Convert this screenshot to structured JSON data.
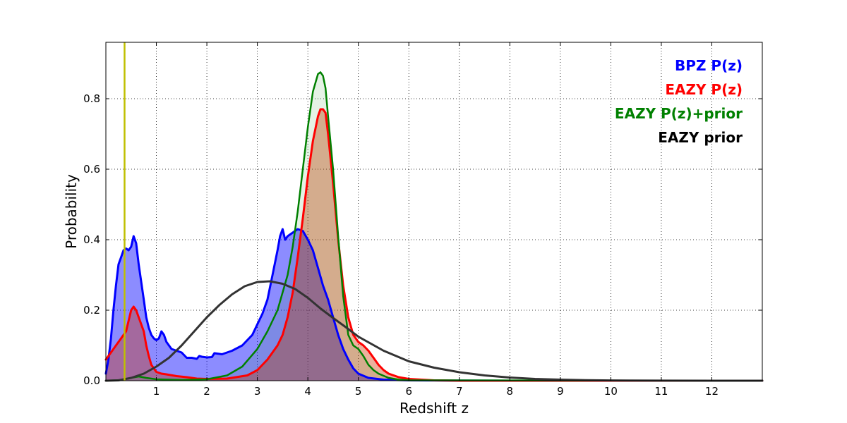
{
  "chart_data": {
    "type": "line",
    "title": "",
    "xlabel": "Redshift z",
    "ylabel": "Probability",
    "xlim": [
      0,
      13
    ],
    "ylim": [
      0,
      0.96
    ],
    "grid": true,
    "legend_position": "top-right",
    "x_ticks": [
      1,
      2,
      3,
      4,
      5,
      6,
      7,
      8,
      9,
      10,
      11,
      12
    ],
    "x_tick_labels": [
      "1",
      "2",
      "3",
      "4",
      "5",
      "6",
      "7",
      "8",
      "9",
      "10",
      "11",
      "12"
    ],
    "y_ticks": [
      0,
      0.2,
      0.4,
      0.6,
      0.8
    ],
    "y_tick_labels": [
      "0.0",
      "0.2",
      "0.4",
      "0.6",
      "0.8"
    ],
    "vertical_marker": {
      "x": 0.37,
      "color": "#bfbf00"
    },
    "series": [
      {
        "name": "BPZ P(z)",
        "color": "#0000ff",
        "fill": "#0000ff",
        "fill_opacity": 0.45,
        "stroke_width": 3,
        "points": [
          [
            0,
            0.02
          ],
          [
            0.05,
            0.06
          ],
          [
            0.1,
            0.12
          ],
          [
            0.15,
            0.2
          ],
          [
            0.2,
            0.27
          ],
          [
            0.25,
            0.33
          ],
          [
            0.3,
            0.35
          ],
          [
            0.35,
            0.37
          ],
          [
            0.4,
            0.375
          ],
          [
            0.45,
            0.37
          ],
          [
            0.5,
            0.38
          ],
          [
            0.55,
            0.41
          ],
          [
            0.6,
            0.39
          ],
          [
            0.65,
            0.33
          ],
          [
            0.7,
            0.28
          ],
          [
            0.75,
            0.23
          ],
          [
            0.8,
            0.18
          ],
          [
            0.85,
            0.15
          ],
          [
            0.9,
            0.13
          ],
          [
            0.95,
            0.12
          ],
          [
            1.0,
            0.115
          ],
          [
            1.05,
            0.12
          ],
          [
            1.1,
            0.14
          ],
          [
            1.15,
            0.13
          ],
          [
            1.2,
            0.11
          ],
          [
            1.3,
            0.09
          ],
          [
            1.4,
            0.085
          ],
          [
            1.5,
            0.08
          ],
          [
            1.6,
            0.065
          ],
          [
            1.7,
            0.065
          ],
          [
            1.8,
            0.062
          ],
          [
            1.85,
            0.07
          ],
          [
            1.9,
            0.068
          ],
          [
            2.0,
            0.066
          ],
          [
            2.1,
            0.067
          ],
          [
            2.15,
            0.078
          ],
          [
            2.3,
            0.075
          ],
          [
            2.5,
            0.085
          ],
          [
            2.7,
            0.1
          ],
          [
            2.9,
            0.13
          ],
          [
            3.0,
            0.16
          ],
          [
            3.1,
            0.19
          ],
          [
            3.2,
            0.23
          ],
          [
            3.3,
            0.3
          ],
          [
            3.4,
            0.37
          ],
          [
            3.45,
            0.41
          ],
          [
            3.5,
            0.43
          ],
          [
            3.55,
            0.4
          ],
          [
            3.6,
            0.41
          ],
          [
            3.7,
            0.42
          ],
          [
            3.8,
            0.43
          ],
          [
            3.9,
            0.425
          ],
          [
            4.0,
            0.4
          ],
          [
            4.1,
            0.37
          ],
          [
            4.2,
            0.32
          ],
          [
            4.3,
            0.27
          ],
          [
            4.4,
            0.23
          ],
          [
            4.5,
            0.18
          ],
          [
            4.6,
            0.13
          ],
          [
            4.7,
            0.09
          ],
          [
            4.8,
            0.06
          ],
          [
            4.9,
            0.035
          ],
          [
            5.0,
            0.02
          ],
          [
            5.2,
            0.008
          ],
          [
            5.5,
            0.003
          ],
          [
            6.0,
            0.001
          ],
          [
            8.0,
            0.0
          ],
          [
            13.0,
            0.0
          ]
        ]
      },
      {
        "name": "EAZY P(z)",
        "color": "#ff0000",
        "fill": "#cc3300",
        "fill_opacity": 0.38,
        "stroke_width": 3,
        "points": [
          [
            0,
            0.06
          ],
          [
            0.1,
            0.08
          ],
          [
            0.2,
            0.1
          ],
          [
            0.3,
            0.12
          ],
          [
            0.4,
            0.14
          ],
          [
            0.45,
            0.17
          ],
          [
            0.5,
            0.2
          ],
          [
            0.55,
            0.21
          ],
          [
            0.6,
            0.2
          ],
          [
            0.65,
            0.18
          ],
          [
            0.7,
            0.16
          ],
          [
            0.75,
            0.14
          ],
          [
            0.8,
            0.1
          ],
          [
            0.85,
            0.07
          ],
          [
            0.9,
            0.045
          ],
          [
            0.95,
            0.035
          ],
          [
            1.0,
            0.025
          ],
          [
            1.1,
            0.02
          ],
          [
            1.2,
            0.018
          ],
          [
            1.4,
            0.013
          ],
          [
            1.6,
            0.01
          ],
          [
            1.8,
            0.006
          ],
          [
            2.0,
            0.005
          ],
          [
            2.4,
            0.006
          ],
          [
            2.8,
            0.015
          ],
          [
            3.0,
            0.03
          ],
          [
            3.2,
            0.06
          ],
          [
            3.4,
            0.1
          ],
          [
            3.5,
            0.13
          ],
          [
            3.6,
            0.18
          ],
          [
            3.7,
            0.25
          ],
          [
            3.8,
            0.35
          ],
          [
            3.9,
            0.46
          ],
          [
            4.0,
            0.58
          ],
          [
            4.1,
            0.68
          ],
          [
            4.2,
            0.75
          ],
          [
            4.25,
            0.77
          ],
          [
            4.3,
            0.77
          ],
          [
            4.35,
            0.76
          ],
          [
            4.4,
            0.7
          ],
          [
            4.5,
            0.56
          ],
          [
            4.6,
            0.4
          ],
          [
            4.7,
            0.27
          ],
          [
            4.8,
            0.18
          ],
          [
            4.9,
            0.13
          ],
          [
            5.0,
            0.11
          ],
          [
            5.1,
            0.1
          ],
          [
            5.2,
            0.085
          ],
          [
            5.3,
            0.065
          ],
          [
            5.4,
            0.045
          ],
          [
            5.5,
            0.03
          ],
          [
            5.6,
            0.02
          ],
          [
            5.8,
            0.01
          ],
          [
            6.0,
            0.005
          ],
          [
            6.5,
            0.001
          ],
          [
            7.0,
            0.0
          ],
          [
            13.0,
            0.0
          ]
        ]
      },
      {
        "name": "EAZY P(z)+prior",
        "color": "#008000",
        "fill": "#008000",
        "fill_opacity": 0.1,
        "stroke_width": 2.5,
        "points": [
          [
            0,
            0.0
          ],
          [
            0.3,
            0.002
          ],
          [
            0.5,
            0.008
          ],
          [
            0.65,
            0.012
          ],
          [
            0.8,
            0.008
          ],
          [
            1.0,
            0.004
          ],
          [
            1.5,
            0.002
          ],
          [
            2.0,
            0.004
          ],
          [
            2.4,
            0.015
          ],
          [
            2.7,
            0.04
          ],
          [
            3.0,
            0.09
          ],
          [
            3.2,
            0.14
          ],
          [
            3.4,
            0.2
          ],
          [
            3.6,
            0.3
          ],
          [
            3.7,
            0.38
          ],
          [
            3.8,
            0.48
          ],
          [
            3.9,
            0.6
          ],
          [
            4.0,
            0.72
          ],
          [
            4.1,
            0.82
          ],
          [
            4.2,
            0.87
          ],
          [
            4.25,
            0.875
          ],
          [
            4.3,
            0.865
          ],
          [
            4.35,
            0.83
          ],
          [
            4.4,
            0.75
          ],
          [
            4.5,
            0.6
          ],
          [
            4.6,
            0.41
          ],
          [
            4.7,
            0.24
          ],
          [
            4.8,
            0.13
          ],
          [
            4.9,
            0.1
          ],
          [
            5.0,
            0.09
          ],
          [
            5.1,
            0.07
          ],
          [
            5.2,
            0.045
          ],
          [
            5.3,
            0.03
          ],
          [
            5.4,
            0.02
          ],
          [
            5.6,
            0.008
          ],
          [
            5.8,
            0.003
          ],
          [
            6.0,
            0.001
          ],
          [
            13.0,
            0.0
          ]
        ]
      },
      {
        "name": "EAZY prior",
        "color": "#333333",
        "fill": "none",
        "fill_opacity": 0,
        "stroke_width": 3,
        "points": [
          [
            0,
            0.0
          ],
          [
            0.25,
            0.001
          ],
          [
            0.5,
            0.008
          ],
          [
            0.75,
            0.02
          ],
          [
            1.0,
            0.04
          ],
          [
            1.25,
            0.065
          ],
          [
            1.5,
            0.1
          ],
          [
            1.75,
            0.14
          ],
          [
            2.0,
            0.18
          ],
          [
            2.25,
            0.215
          ],
          [
            2.5,
            0.245
          ],
          [
            2.75,
            0.268
          ],
          [
            3.0,
            0.28
          ],
          [
            3.25,
            0.282
          ],
          [
            3.5,
            0.275
          ],
          [
            3.75,
            0.26
          ],
          [
            4.0,
            0.235
          ],
          [
            4.25,
            0.205
          ],
          [
            4.5,
            0.178
          ],
          [
            4.75,
            0.152
          ],
          [
            5.0,
            0.125
          ],
          [
            5.5,
            0.085
          ],
          [
            6.0,
            0.055
          ],
          [
            6.5,
            0.037
          ],
          [
            7.0,
            0.024
          ],
          [
            7.5,
            0.015
          ],
          [
            8.0,
            0.009
          ],
          [
            8.5,
            0.005
          ],
          [
            9.0,
            0.003
          ],
          [
            9.5,
            0.0015
          ],
          [
            10.0,
            0.0008
          ],
          [
            11.0,
            0.0002
          ],
          [
            12.0,
            0.0
          ],
          [
            13.0,
            0.0
          ]
        ]
      }
    ]
  }
}
